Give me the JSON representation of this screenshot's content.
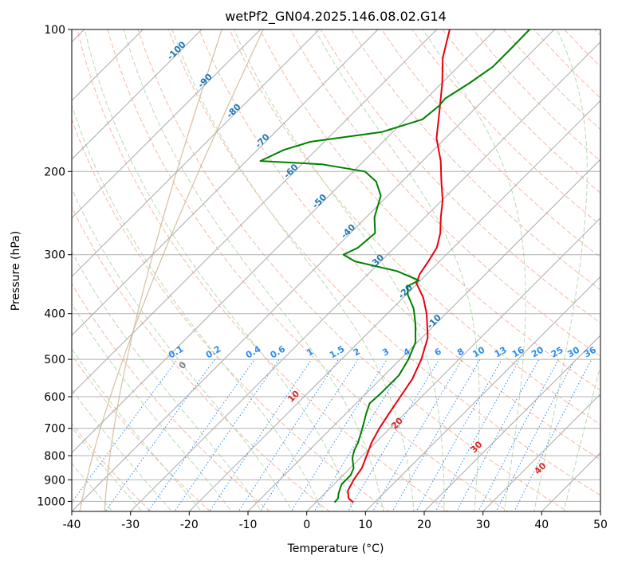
{
  "chart_data": {
    "type": "line",
    "subtype": "skew-t log-p diagram",
    "title": "wetPf2_GN04.2025.146.08.02.G14",
    "xlabel": "Temperature (°C)",
    "ylabel": "Pressure (hPa)",
    "xlim": [
      -40,
      50
    ],
    "ylim": [
      1050,
      100
    ],
    "y_scale": "log",
    "grid": true,
    "x_ticks": [
      -40,
      -30,
      -20,
      -10,
      0,
      10,
      20,
      30,
      40,
      50
    ],
    "y_ticks": [
      1000,
      900,
      800,
      700,
      600,
      500,
      400,
      300,
      200,
      100
    ],
    "isotherm_labels": [
      -100,
      -90,
      -80,
      -70,
      -60,
      -50,
      -40,
      -30,
      -20,
      -10
    ],
    "mixing_ratio_labels": [
      "0.1",
      "0.2",
      "0.4",
      "0.6",
      "1",
      "1.5",
      "2",
      "3",
      "4",
      "6",
      "8",
      "10",
      "13",
      "16",
      "20",
      "25",
      "30",
      "36"
    ],
    "moist_adiabat_labels": [
      "0",
      "10",
      "20",
      "30",
      "40"
    ],
    "colors": {
      "temperature": "#e8000b",
      "dewpoint": "#008000",
      "isotherm_label": "#1f77b4",
      "mixing_ratio": "#2b8cf0",
      "moist_adiabat_label": "#d62728",
      "zero_label": "#808080",
      "dry_adiabat": "#f6b8a4",
      "moist_adiabat": "#b7dbb0",
      "isotherm": "#aaaaaa",
      "boundary": "#d9c4a6"
    },
    "series": [
      {
        "role": "temperature",
        "points": [
          {
            "p": 1005,
            "t": 6.4
          },
          {
            "p": 985,
            "t": 4.9
          },
          {
            "p": 950,
            "t": 3.5
          },
          {
            "p": 900,
            "t": 2.6
          },
          {
            "p": 850,
            "t": 2.0
          },
          {
            "p": 800,
            "t": 0.7
          },
          {
            "p": 750,
            "t": -0.7
          },
          {
            "p": 700,
            "t": -1.8
          },
          {
            "p": 650,
            "t": -2.7
          },
          {
            "p": 600,
            "t": -3.6
          },
          {
            "p": 550,
            "t": -4.6
          },
          {
            "p": 500,
            "t": -6.4
          },
          {
            "p": 450,
            "t": -9.0
          },
          {
            "p": 420,
            "t": -11.5
          },
          {
            "p": 400,
            "t": -13.3
          },
          {
            "p": 370,
            "t": -16.6
          },
          {
            "p": 345,
            "t": -20.2
          },
          {
            "p": 330,
            "t": -21.2
          },
          {
            "p": 310,
            "t": -21.9
          },
          {
            "p": 290,
            "t": -22.8
          },
          {
            "p": 270,
            "t": -24.7
          },
          {
            "p": 250,
            "t": -27.3
          },
          {
            "p": 230,
            "t": -29.9
          },
          {
            "p": 210,
            "t": -33.3
          },
          {
            "p": 190,
            "t": -36.9
          },
          {
            "p": 170,
            "t": -41.5
          },
          {
            "p": 150,
            "t": -45.4
          },
          {
            "p": 130,
            "t": -49.9
          },
          {
            "p": 115,
            "t": -54.1
          },
          {
            "p": 100,
            "t": -57.8
          }
        ]
      },
      {
        "role": "dewpoint",
        "points": [
          {
            "p": 1005,
            "t": 3.2
          },
          {
            "p": 985,
            "t": 3.1
          },
          {
            "p": 960,
            "t": 2.3
          },
          {
            "p": 920,
            "t": 1.3
          },
          {
            "p": 880,
            "t": 1.3
          },
          {
            "p": 850,
            "t": 0.6
          },
          {
            "p": 810,
            "t": -1.3
          },
          {
            "p": 780,
            "t": -2.3
          },
          {
            "p": 750,
            "t": -3.0
          },
          {
            "p": 700,
            "t": -4.7
          },
          {
            "p": 650,
            "t": -6.6
          },
          {
            "p": 620,
            "t": -7.7
          },
          {
            "p": 590,
            "t": -7.5
          },
          {
            "p": 540,
            "t": -7.5
          },
          {
            "p": 500,
            "t": -8.6
          },
          {
            "p": 460,
            "t": -10.3
          },
          {
            "p": 420,
            "t": -13.5
          },
          {
            "p": 390,
            "t": -16.4
          },
          {
            "p": 365,
            "t": -19.7
          },
          {
            "p": 350,
            "t": -21.2
          },
          {
            "p": 340,
            "t": -20.3
          },
          {
            "p": 325,
            "t": -25.6
          },
          {
            "p": 310,
            "t": -34.4
          },
          {
            "p": 300,
            "t": -37.5
          },
          {
            "p": 290,
            "t": -36.2
          },
          {
            "p": 270,
            "t": -35.8
          },
          {
            "p": 250,
            "t": -38.6
          },
          {
            "p": 225,
            "t": -41.2
          },
          {
            "p": 210,
            "t": -44.4
          },
          {
            "p": 200,
            "t": -48.0
          },
          {
            "p": 193,
            "t": -56.6
          },
          {
            "p": 190,
            "t": -67.6
          },
          {
            "p": 180,
            "t": -65.5
          },
          {
            "p": 173,
            "t": -62.4
          },
          {
            "p": 165,
            "t": -51.9
          },
          {
            "p": 155,
            "t": -47.1
          },
          {
            "p": 145,
            "t": -46.6
          },
          {
            "p": 140,
            "t": -46.8
          },
          {
            "p": 130,
            "t": -45.3
          },
          {
            "p": 120,
            "t": -44.1
          },
          {
            "p": 110,
            "t": -44.1
          },
          {
            "p": 100,
            "t": -44.2
          }
        ]
      }
    ]
  }
}
